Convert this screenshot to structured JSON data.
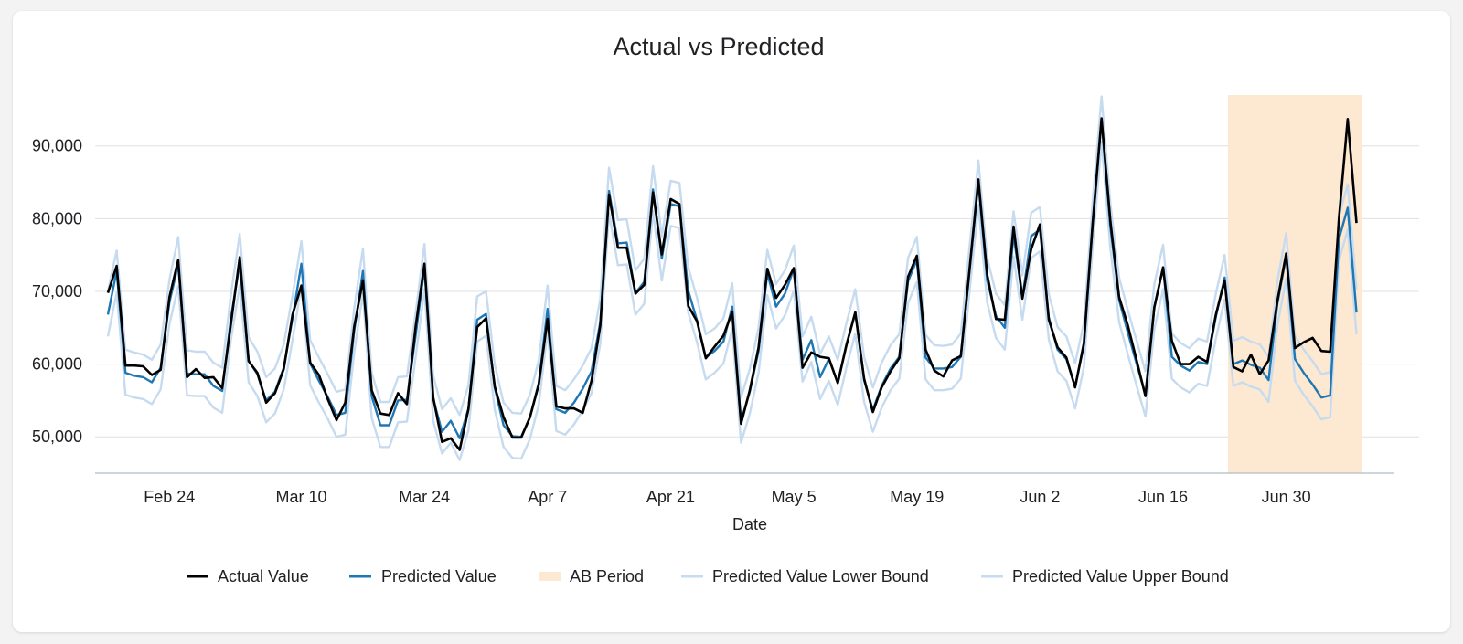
{
  "colors": {
    "actual": "#000000",
    "predicted": "#1f77b4",
    "bounds": "#c6dbef",
    "ab_period": "#fde8d2",
    "grid": "#e0e0e0"
  },
  "chart_data": {
    "type": "line",
    "title": "Actual vs Predicted",
    "xlabel": "Date",
    "ylabel": "",
    "ylim": [
      45000,
      97000
    ],
    "yticks": [
      50000,
      60000,
      70000,
      80000,
      90000
    ],
    "ytick_labels": [
      "50,000",
      "60,000",
      "70,000",
      "80,000",
      "90,000"
    ],
    "x_start": "Feb 17",
    "x_day_count": 147,
    "xticks": [
      {
        "day": 7,
        "label": "Feb 24"
      },
      {
        "day": 22,
        "label": "Mar 10"
      },
      {
        "day": 36,
        "label": "Mar 24"
      },
      {
        "day": 50,
        "label": "Apr 7"
      },
      {
        "day": 64,
        "label": "Apr 21"
      },
      {
        "day": 78,
        "label": "May 5"
      },
      {
        "day": 92,
        "label": "May 19"
      },
      {
        "day": 106,
        "label": "Jun 2"
      },
      {
        "day": 120,
        "label": "Jun 16"
      },
      {
        "day": 134,
        "label": "Jun 30"
      }
    ],
    "ab_period": {
      "start_day": 128,
      "end_day": 142
    },
    "series": [
      {
        "name": "Actual Value",
        "values": [
          69800,
          73500,
          59800,
          59800,
          59700,
          58500,
          59200,
          69200,
          74300,
          58200,
          59300,
          58100,
          58200,
          56700,
          65600,
          74700,
          60400,
          58800,
          54700,
          56000,
          59300,
          66800,
          70800,
          60200,
          58500,
          55200,
          52300,
          54700,
          65100,
          71500,
          56400,
          53200,
          53000,
          56000,
          54500,
          65200,
          73800,
          55400,
          49300,
          49800,
          48200,
          53800,
          65100,
          66300,
          56900,
          52700,
          49900,
          49900,
          52700,
          57200,
          66200,
          54200,
          53900,
          53900,
          53300,
          57700,
          65300,
          83300,
          76000,
          76000,
          69700,
          70900,
          83600,
          75100,
          82700,
          82000,
          68000,
          65900,
          60800,
          62400,
          63900,
          67200,
          51800,
          56400,
          62300,
          73100,
          69100,
          70900,
          73200,
          59500,
          61600,
          61000,
          60800,
          57400,
          62700,
          67100,
          58000,
          53400,
          56800,
          59000,
          60800,
          72000,
          74900,
          62000,
          59100,
          58300,
          60500,
          61100,
          73100,
          85400,
          72300,
          66200,
          66100,
          78900,
          69000,
          75800,
          79200,
          66100,
          62300,
          60900,
          56800,
          62900,
          79400,
          93800,
          79700,
          69200,
          65300,
          60500,
          55600,
          67800,
          73300,
          63200,
          60000,
          60000,
          61000,
          60300,
          66800,
          71500,
          59600,
          59000,
          61300,
          58600,
          60500,
          68700,
          75200,
          62200,
          63000,
          63600,
          61800,
          61700,
          80000,
          93700,
          79400
        ]
      },
      {
        "name": "Predicted Value",
        "values": [
          66800,
          72800,
          58800,
          58400,
          58200,
          57500,
          59500,
          68500,
          73700,
          58700,
          58600,
          58600,
          57000,
          56300,
          66400,
          73800,
          60500,
          58600,
          55000,
          56200,
          59500,
          66300,
          73800,
          60100,
          57700,
          55500,
          53000,
          53300,
          64500,
          72800,
          55600,
          51600,
          51600,
          55000,
          55100,
          64000,
          73300,
          55200,
          50700,
          52200,
          49800,
          53900,
          66100,
          66900,
          56700,
          51600,
          50100,
          50000,
          52700,
          57400,
          67600,
          53800,
          53300,
          54700,
          56600,
          59000,
          65800,
          83800,
          76600,
          76700,
          69800,
          71300,
          84000,
          74500,
          82000,
          81700,
          70100,
          66000,
          60900,
          61800,
          63100,
          67900,
          52200,
          56200,
          61800,
          72500,
          67900,
          69700,
          73100,
          60600,
          63300,
          58200,
          60700,
          57400,
          62600,
          67200,
          57800,
          53700,
          57000,
          59400,
          61000,
          71400,
          74300,
          60900,
          59400,
          59400,
          59600,
          61000,
          73000,
          84900,
          71500,
          66600,
          65000,
          77800,
          69100,
          77600,
          78500,
          66400,
          62000,
          60700,
          56900,
          62600,
          79200,
          93600,
          78900,
          68800,
          64300,
          60000,
          55800,
          67800,
          73300,
          61000,
          59800,
          59100,
          60300,
          60000,
          66500,
          71900,
          60000,
          60500,
          59900,
          59500,
          57800,
          68300,
          74800,
          60700,
          58800,
          57200,
          55400,
          55700,
          77200,
          81500,
          67100
        ]
      },
      {
        "name": "Predicted Value Lower Bound",
        "values": [
          63800,
          69800,
          55800,
          55400,
          55200,
          54500,
          56500,
          65500,
          70700,
          55700,
          55600,
          55600,
          54000,
          53300,
          63400,
          70800,
          57500,
          55600,
          52000,
          53200,
          56500,
          63300,
          70800,
          57100,
          54700,
          52500,
          50000,
          50300,
          61500,
          69800,
          52600,
          48600,
          48600,
          52000,
          52100,
          61000,
          70300,
          52200,
          47700,
          49200,
          46800,
          50900,
          63100,
          63900,
          53700,
          48600,
          47100,
          47000,
          49700,
          54400,
          64600,
          50800,
          50300,
          51700,
          53600,
          56000,
          62800,
          80800,
          73600,
          73700,
          66800,
          68300,
          81000,
          71500,
          79000,
          78700,
          67100,
          63000,
          57900,
          58800,
          60100,
          64900,
          49200,
          53200,
          58800,
          69500,
          64900,
          66700,
          70100,
          57600,
          60300,
          55200,
          57700,
          54400,
          59600,
          64200,
          54800,
          50700,
          54000,
          56400,
          58000,
          68400,
          71300,
          57900,
          56400,
          56400,
          56600,
          58000,
          70000,
          81900,
          68500,
          63600,
          62000,
          74800,
          66100,
          74600,
          75500,
          63400,
          59000,
          57700,
          53900,
          59600,
          76200,
          90600,
          75900,
          65800,
          61300,
          57000,
          52800,
          64800,
          70300,
          58000,
          56800,
          56100,
          57300,
          57000,
          63500,
          68900,
          57000,
          57500,
          56900,
          56500,
          54800,
          65300,
          71800,
          57700,
          55800,
          54200,
          52400,
          52700,
          74200,
          78500,
          64100
        ]
      },
      {
        "name": "Predicted Value Upper Bound",
        "values": [
          70000,
          75600,
          62000,
          61600,
          61300,
          60600,
          62700,
          71600,
          77500,
          61900,
          61700,
          61700,
          60200,
          59500,
          69600,
          77900,
          63700,
          61700,
          58200,
          59400,
          62700,
          69400,
          76900,
          63300,
          60900,
          58600,
          56200,
          56500,
          67600,
          75900,
          58800,
          54800,
          54800,
          58200,
          58300,
          67100,
          76500,
          58400,
          53800,
          55300,
          53000,
          57100,
          69300,
          70000,
          59900,
          54700,
          53300,
          53200,
          55800,
          60500,
          70800,
          57000,
          56400,
          57900,
          59800,
          62200,
          69000,
          87000,
          79800,
          79900,
          72900,
          74500,
          87200,
          77600,
          85200,
          84900,
          73300,
          69100,
          64100,
          64900,
          66300,
          71100,
          55400,
          59300,
          65000,
          75700,
          71000,
          72900,
          76300,
          63800,
          66500,
          61400,
          63800,
          60600,
          65700,
          70300,
          61000,
          56800,
          60200,
          62600,
          64100,
          74600,
          77500,
          64000,
          62600,
          62500,
          62700,
          64200,
          76200,
          88000,
          74600,
          69700,
          68100,
          81000,
          72200,
          80800,
          81600,
          69600,
          65100,
          63800,
          60100,
          65700,
          82400,
          96800,
          82100,
          71900,
          67400,
          63200,
          59000,
          71000,
          76400,
          64200,
          62900,
          62200,
          63500,
          63100,
          69700,
          75000,
          63200,
          63700,
          63100,
          62700,
          61000,
          71400,
          78000,
          63900,
          62000,
          60400,
          58600,
          58900,
          80400,
          84700,
          70300
        ]
      }
    ]
  }
}
